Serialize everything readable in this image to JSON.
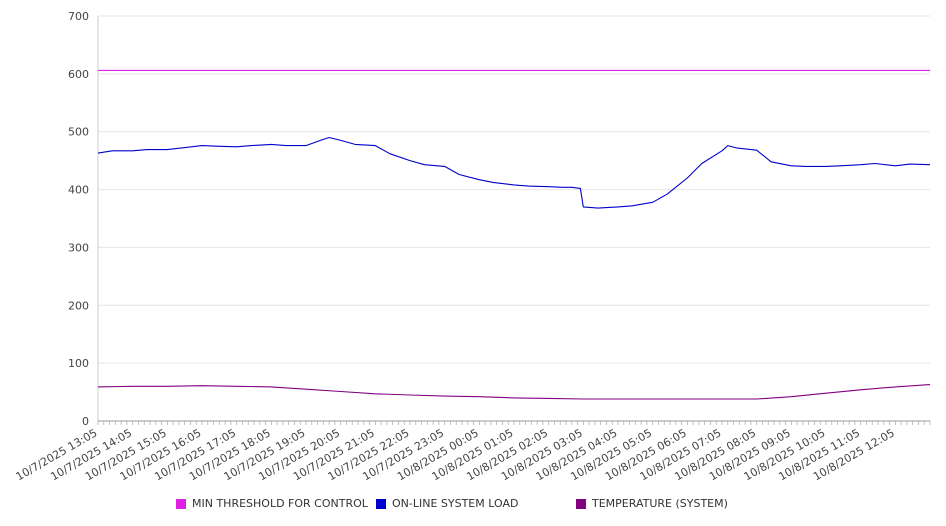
{
  "chart_data": {
    "type": "line",
    "title": "",
    "xlabel": "",
    "ylabel": "",
    "ylim": [
      0,
      700
    ],
    "yticks": [
      0,
      100,
      200,
      300,
      400,
      500,
      600,
      700
    ],
    "grid": true,
    "legend_position": "bottom",
    "x_tick_labels": [
      "10/7/2025 13:05",
      "10/7/2025 14:05",
      "10/7/2025 15:05",
      "10/7/2025 16:05",
      "10/7/2025 17:05",
      "10/7/2025 18:05",
      "10/7/2025 19:05",
      "10/7/2025 20:05",
      "10/7/2025 21:05",
      "10/7/2025 22:05",
      "10/7/2025 23:05",
      "10/8/2025 00:05",
      "10/8/2025 01:05",
      "10/8/2025 02:05",
      "10/8/2025 03:05",
      "10/8/2025 04:05",
      "10/8/2025 05:05",
      "10/8/2025 06:05",
      "10/8/2025 07:05",
      "10/8/2025 08:05",
      "10/8/2025 09:05",
      "10/8/2025 10:05",
      "10/8/2025 11:05",
      "10/8/2025 12:05"
    ],
    "x_range": [
      "10/7/2025 13:05",
      "10/8/2025 13:05"
    ],
    "series": [
      {
        "name": "MIN THRESHOLD FOR CONTROL",
        "color": "#e020e0",
        "x": [
          "10/7/2025 13:05",
          "10/8/2025 13:05"
        ],
        "values": [
          606,
          606
        ]
      },
      {
        "name": "ON-LINE SYSTEM LOAD",
        "color": "#0000cc",
        "x": [
          "10/7/2025 13:05",
          "10/7/2025 13:30",
          "10/7/2025 14:05",
          "10/7/2025 14:30",
          "10/7/2025 15:05",
          "10/7/2025 15:30",
          "10/7/2025 16:05",
          "10/7/2025 16:30",
          "10/7/2025 17:05",
          "10/7/2025 17:30",
          "10/7/2025 18:05",
          "10/7/2025 18:30",
          "10/7/2025 19:05",
          "10/7/2025 19:30",
          "10/7/2025 19:45",
          "10/7/2025 20:05",
          "10/7/2025 20:30",
          "10/7/2025 21:05",
          "10/7/2025 21:30",
          "10/7/2025 22:05",
          "10/7/2025 22:30",
          "10/7/2025 23:05",
          "10/7/2025 23:30",
          "10/8/2025 00:05",
          "10/8/2025 00:30",
          "10/8/2025 01:05",
          "10/8/2025 01:30",
          "10/8/2025 02:05",
          "10/8/2025 02:30",
          "10/8/2025 02:45",
          "10/8/2025 03:00",
          "10/8/2025 03:05",
          "10/8/2025 03:30",
          "10/8/2025 04:05",
          "10/8/2025 04:30",
          "10/8/2025 05:05",
          "10/8/2025 05:30",
          "10/8/2025 06:05",
          "10/8/2025 06:30",
          "10/8/2025 07:05",
          "10/8/2025 07:15",
          "10/8/2025 07:30",
          "10/8/2025 08:05",
          "10/8/2025 08:30",
          "10/8/2025 09:05",
          "10/8/2025 09:30",
          "10/8/2025 10:05",
          "10/8/2025 10:30",
          "10/8/2025 11:05",
          "10/8/2025 11:30",
          "10/8/2025 12:05",
          "10/8/2025 12:30",
          "10/8/2025 13:05"
        ],
        "values": [
          463,
          467,
          467,
          469,
          469,
          472,
          476,
          475,
          474,
          476,
          478,
          476,
          476,
          485,
          490,
          485,
          478,
          476,
          462,
          450,
          443,
          440,
          426,
          417,
          412,
          408,
          406,
          405,
          404,
          404,
          402,
          370,
          368,
          370,
          372,
          378,
          392,
          420,
          445,
          467,
          476,
          472,
          468,
          448,
          441,
          440,
          440,
          441,
          443,
          445,
          441,
          444,
          443
        ]
      },
      {
        "name": "TEMPERATURE (SYSTEM)",
        "color": "#800080",
        "x": [
          "10/7/2025 13:05",
          "10/7/2025 14:05",
          "10/7/2025 15:05",
          "10/7/2025 16:05",
          "10/7/2025 17:05",
          "10/7/2025 18:05",
          "10/7/2025 19:05",
          "10/7/2025 20:05",
          "10/7/2025 21:05",
          "10/7/2025 22:05",
          "10/7/2025 23:05",
          "10/8/2025 00:05",
          "10/8/2025 01:05",
          "10/8/2025 02:05",
          "10/8/2025 03:05",
          "10/8/2025 04:05",
          "10/8/2025 05:05",
          "10/8/2025 06:05",
          "10/8/2025 07:05",
          "10/8/2025 08:05",
          "10/8/2025 09:05",
          "10/8/2025 10:05",
          "10/8/2025 11:05",
          "10/8/2025 12:05",
          "10/8/2025 13:05"
        ],
        "values": [
          59,
          60,
          60,
          61,
          60,
          59,
          55,
          51,
          47,
          45,
          43,
          42,
          40,
          39,
          38,
          38,
          38,
          38,
          38,
          38,
          42,
          48,
          54,
          59,
          63
        ]
      }
    ]
  }
}
